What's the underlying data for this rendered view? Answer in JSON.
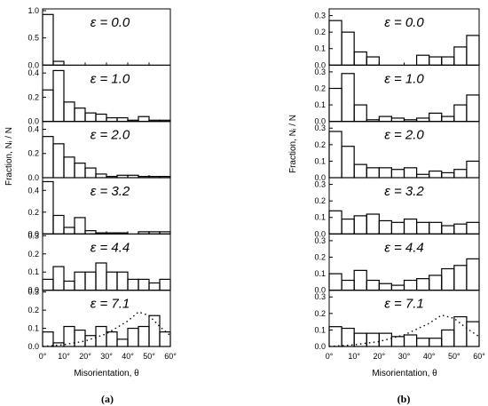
{
  "labels": {
    "a": "(a)",
    "b": "(b)",
    "xlabel": "Misorientation, θ",
    "ylabel_a": "Fraction, Nᵢ / N",
    "ylabel_b": "Fraction, Nᵢ / N",
    "x_ticks": [
      "0°",
      "10°",
      "20°",
      "30°",
      "40°",
      "50°",
      "60°"
    ]
  },
  "chart_data": [
    {
      "type": "bar",
      "panel": "(a)",
      "bin_width_deg": 5,
      "x_range": [
        0,
        60
      ],
      "ylabel": "Fraction, Nᵢ / N",
      "xlabel": "Misorientation, θ",
      "subplots": [
        {
          "label": "ε = 0.0",
          "ylim": [
            0,
            1.0
          ],
          "yticks": [
            "0.0",
            "0.5",
            "1.0"
          ],
          "values": [
            0.93,
            0.07,
            0,
            0,
            0,
            0,
            0,
            0,
            0,
            0,
            0,
            0
          ]
        },
        {
          "label": "ε = 1.0",
          "ylim": [
            0,
            0.45
          ],
          "yticks": [
            "0.0",
            "0.2",
            "0.4"
          ],
          "values": [
            0.26,
            0.42,
            0.16,
            0.11,
            0.07,
            0.06,
            0.03,
            0.03,
            0.01,
            0.04,
            0.01,
            0.01
          ]
        },
        {
          "label": "ε = 2.0",
          "ylim": [
            0,
            0.45
          ],
          "yticks": [
            "0.0",
            "0.2",
            "0.4"
          ],
          "values": [
            0.34,
            0.28,
            0.17,
            0.12,
            0.08,
            0.03,
            0.01,
            0.02,
            0.02,
            0.01,
            0.01,
            0.01
          ]
        },
        {
          "label": "ε = 3.2",
          "ylim": [
            0,
            0.5
          ],
          "yticks": [
            "0.0",
            "0.2",
            "0.4"
          ],
          "values": [
            0.48,
            0.17,
            0.06,
            0.15,
            0.03,
            0.01,
            0.01,
            0.01,
            0,
            0.02,
            0.02,
            0.02
          ]
        },
        {
          "label": "ε = 4.4",
          "ylim": [
            0,
            0.3
          ],
          "yticks": [
            "0.0",
            "0.1",
            "0.2",
            "0.3"
          ],
          "values": [
            0.06,
            0.13,
            0.05,
            0.1,
            0.1,
            0.15,
            0.1,
            0.1,
            0.06,
            0.06,
            0.04,
            0.06
          ]
        },
        {
          "label": "ε = 7.1",
          "ylim": [
            0,
            0.3
          ],
          "yticks": [
            "0.0",
            "0.1",
            "0.2",
            "0.3"
          ],
          "values": [
            0.08,
            0.02,
            0.11,
            0.09,
            0.06,
            0.11,
            0.08,
            0.04,
            0.1,
            0.11,
            0.17,
            0.08
          ],
          "dotted_curve": {
            "x": [
              0,
              10,
              20,
              30,
              40,
              45,
              50,
              55,
              60
            ],
            "y": [
              0.0,
              0.01,
              0.03,
              0.07,
              0.14,
              0.19,
              0.17,
              0.11,
              0.06
            ]
          }
        }
      ]
    },
    {
      "type": "bar",
      "panel": "(b)",
      "bin_width_deg": 5,
      "x_range": [
        0,
        60
      ],
      "ylabel": "Fraction, Nᵢ / N",
      "xlabel": "Misorientation, θ",
      "subplots": [
        {
          "label": "ε = 0.0",
          "ylim": [
            0,
            0.33
          ],
          "yticks": [
            "0.0",
            "0.1",
            "0.2",
            "0.3"
          ],
          "values": [
            0.27,
            0.2,
            0.08,
            0.05,
            0,
            0,
            0,
            0.06,
            0.05,
            0.05,
            0.11,
            0.18
          ]
        },
        {
          "label": "ε = 1.0",
          "ylim": [
            0,
            0.33
          ],
          "yticks": [
            "0.0",
            "0.1",
            "0.2",
            "0.3"
          ],
          "values": [
            0.2,
            0.29,
            0.1,
            0.01,
            0.03,
            0.02,
            0.01,
            0.02,
            0.05,
            0.03,
            0.1,
            0.16
          ]
        },
        {
          "label": "ε = 2.0",
          "ylim": [
            0,
            0.33
          ],
          "yticks": [
            "0.0",
            "0.1",
            "0.2",
            "0.3"
          ],
          "values": [
            0.28,
            0.19,
            0.08,
            0.06,
            0.06,
            0.05,
            0.06,
            0.02,
            0.04,
            0.03,
            0.05,
            0.1
          ]
        },
        {
          "label": "ε = 3.2",
          "ylim": [
            0,
            0.33
          ],
          "yticks": [
            "0.0",
            "0.1",
            "0.2",
            "0.3"
          ],
          "values": [
            0.14,
            0.09,
            0.11,
            0.12,
            0.08,
            0.07,
            0.09,
            0.07,
            0.07,
            0.05,
            0.06,
            0.07
          ]
        },
        {
          "label": "ε = 4.4",
          "ylim": [
            0,
            0.33
          ],
          "yticks": [
            "0.0",
            "0.1",
            "0.2",
            "0.3"
          ],
          "values": [
            0.1,
            0.06,
            0.12,
            0.06,
            0.04,
            0.03,
            0.06,
            0.07,
            0.09,
            0.13,
            0.15,
            0.19
          ]
        },
        {
          "label": "ε = 7.1",
          "ylim": [
            0,
            0.33
          ],
          "yticks": [
            "0.0",
            "0.1",
            "0.2",
            "0.3"
          ],
          "values": [
            0.12,
            0.11,
            0.08,
            0.08,
            0.08,
            0.06,
            0.07,
            0.05,
            0.05,
            0.1,
            0.18,
            0.15
          ],
          "dotted_curve": {
            "x": [
              0,
              10,
              20,
              30,
              40,
              45,
              50,
              55,
              60
            ],
            "y": [
              0.0,
              0.01,
              0.03,
              0.07,
              0.14,
              0.19,
              0.17,
              0.11,
              0.06
            ]
          }
        }
      ]
    }
  ]
}
